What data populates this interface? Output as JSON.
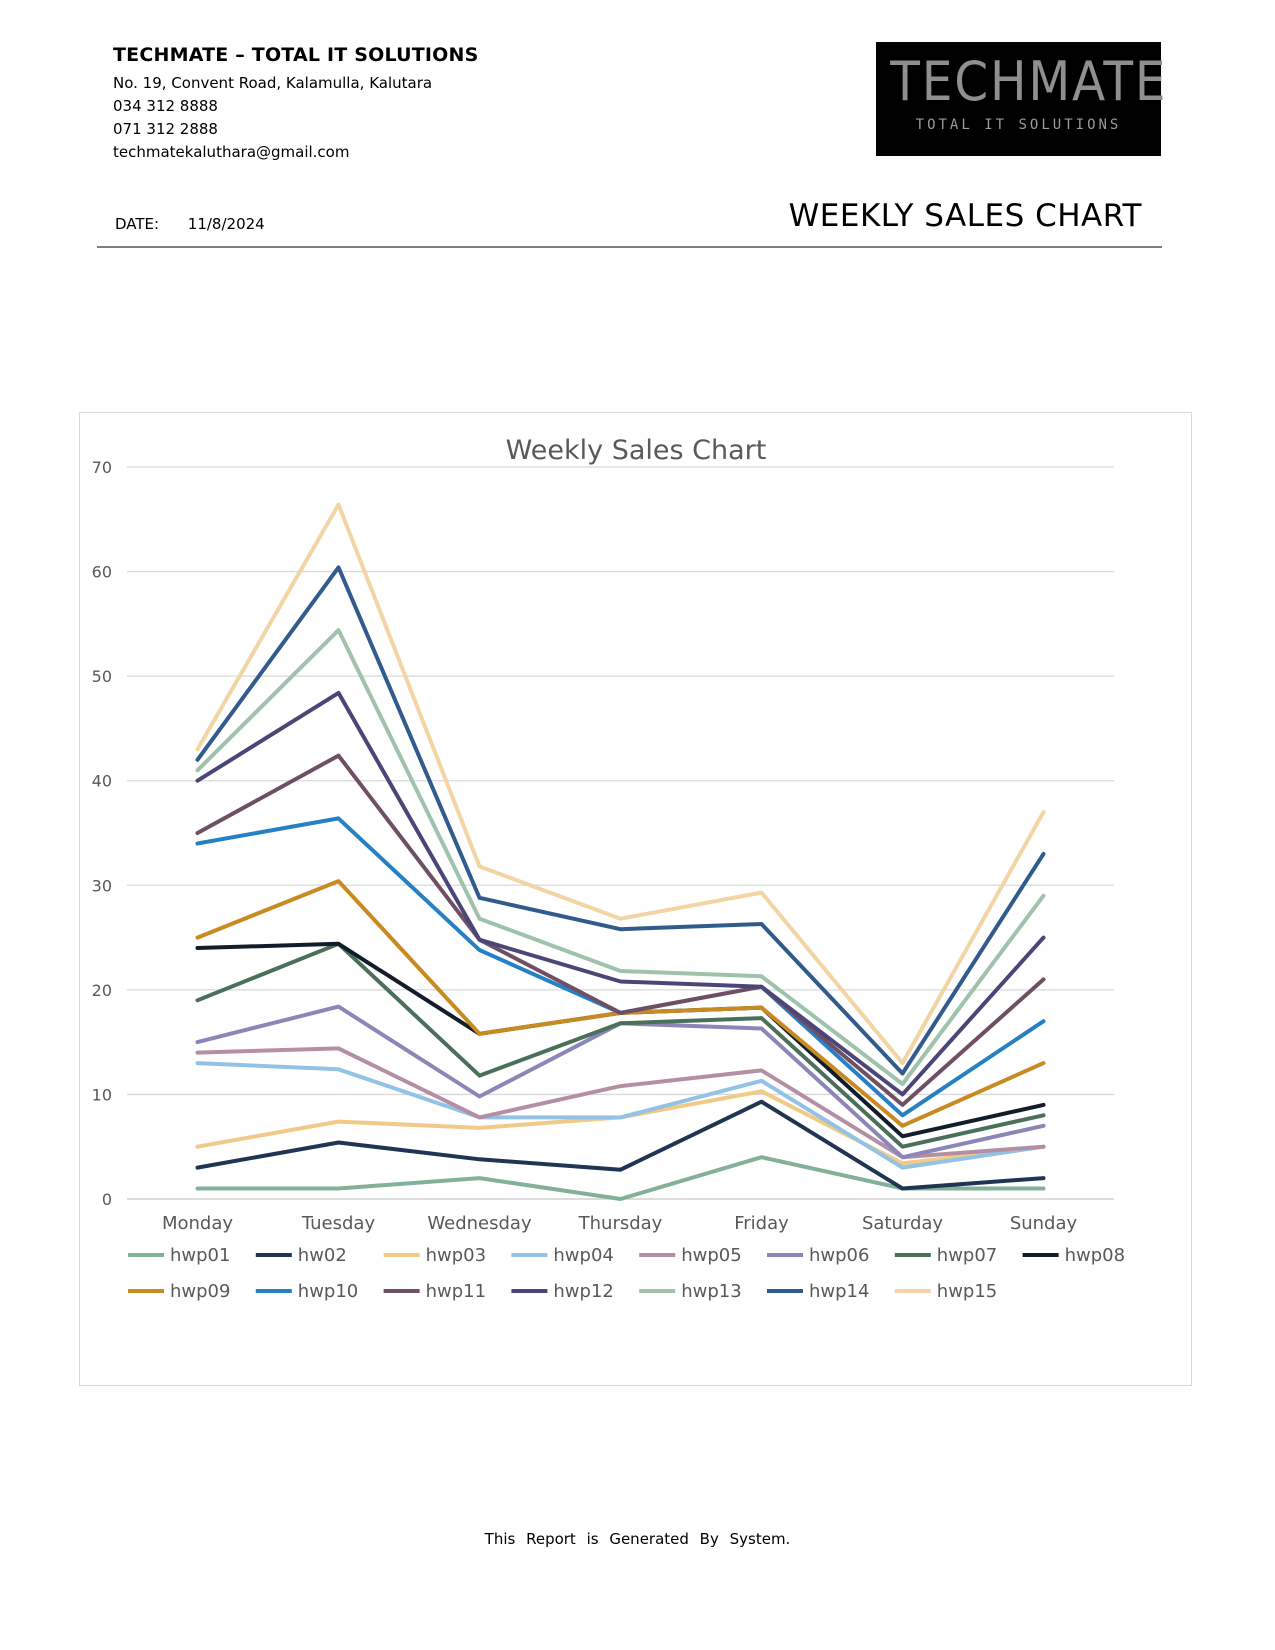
{
  "header": {
    "company_name": "TECHMATE – TOTAL IT SOLUTIONS",
    "address": "No. 19, Convent Road, Kalamulla, Kalutara",
    "phone1": "034 312 8888",
    "phone2": "071 312 2888",
    "email": "techmatekaluthara@gmail.com",
    "logo_main": "TECHMATE",
    "logo_sub": "TOTAL IT SOLUTIONS",
    "date_label": "DATE:",
    "date_value": "11/8/2024",
    "report_title": "WEEKLY SALES CHART"
  },
  "footer": {
    "text": "This Report is Generated By System."
  },
  "chart_data": {
    "type": "line",
    "title": "Weekly Sales Chart",
    "xlabel": "",
    "ylabel": "",
    "categories": [
      "Monday",
      "Tuesday",
      "Wednesday",
      "Thursday",
      "Friday",
      "Saturday",
      "Sunday"
    ],
    "ylim": [
      0,
      70
    ],
    "yticks": [
      0,
      10,
      20,
      30,
      40,
      50,
      60,
      70
    ],
    "grid": true,
    "legend": "bottom",
    "series": [
      {
        "name": "hwp01",
        "color": "#82b098",
        "values": [
          1,
          1,
          2,
          0,
          4,
          1,
          1
        ]
      },
      {
        "name": "hw02",
        "color": "#1f3552",
        "values": [
          3,
          5.4,
          3.8,
          2.8,
          9.3,
          1,
          2
        ]
      },
      {
        "name": "hwp03",
        "color": "#f0ca86",
        "values": [
          5,
          7.4,
          6.8,
          7.8,
          10.3,
          3.4,
          5
        ]
      },
      {
        "name": "hwp04",
        "color": "#92c2e6",
        "values": [
          13,
          12.4,
          7.8,
          7.8,
          11.3,
          3,
          5
        ]
      },
      {
        "name": "hwp05",
        "color": "#b48ea2",
        "values": [
          14,
          14.4,
          7.8,
          10.8,
          12.3,
          4,
          5
        ]
      },
      {
        "name": "hwp06",
        "color": "#8c86b8",
        "values": [
          15,
          18.4,
          9.8,
          16.8,
          16.3,
          4,
          7
        ]
      },
      {
        "name": "hwp07",
        "color": "#4a6f5a",
        "values": [
          19,
          24.4,
          11.8,
          16.8,
          17.3,
          5,
          8
        ]
      },
      {
        "name": "hwp08",
        "color": "#121c2b",
        "values": [
          24,
          24.4,
          15.8,
          17.8,
          18.3,
          6,
          9
        ]
      },
      {
        "name": "hwp09",
        "color": "#c88a22",
        "values": [
          25,
          30.4,
          15.8,
          17.8,
          18.3,
          7,
          13
        ]
      },
      {
        "name": "hwp10",
        "color": "#2680c4",
        "values": [
          34,
          36.4,
          23.8,
          17.8,
          20.3,
          8,
          17
        ]
      },
      {
        "name": "hwp11",
        "color": "#6e4f64",
        "values": [
          35,
          42.4,
          24.8,
          17.8,
          20.3,
          9,
          21
        ]
      },
      {
        "name": "hwp12",
        "color": "#4b4677",
        "values": [
          40,
          48.4,
          24.8,
          20.8,
          20.3,
          10,
          25
        ]
      },
      {
        "name": "hwp13",
        "color": "#9fc2ad",
        "values": [
          41,
          54.4,
          26.8,
          21.8,
          21.3,
          11,
          29
        ]
      },
      {
        "name": "hwp14",
        "color": "#315b8c",
        "values": [
          42,
          60.4,
          28.8,
          25.8,
          26.3,
          12,
          33
        ]
      },
      {
        "name": "hwp15",
        "color": "#f2d4a5",
        "values": [
          43,
          66.4,
          31.8,
          26.8,
          29.3,
          13,
          37
        ]
      }
    ]
  }
}
